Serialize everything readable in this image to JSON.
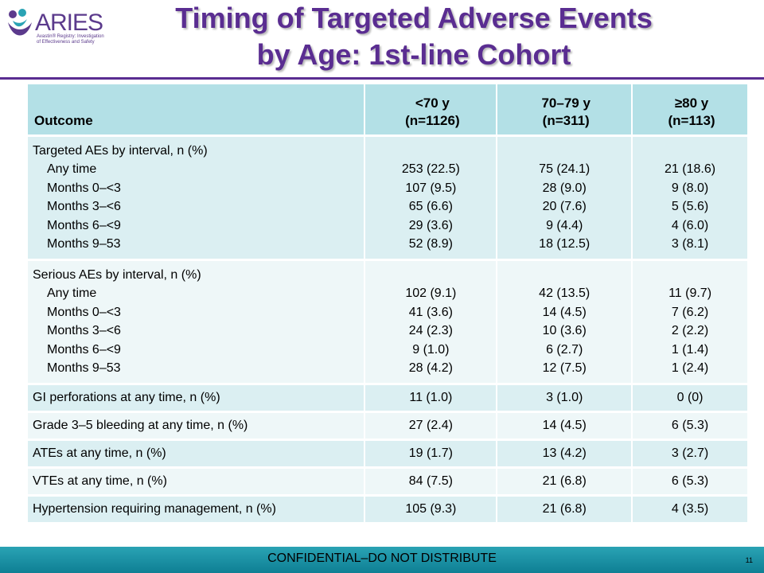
{
  "header": {
    "logo_text": "ARIES",
    "logo_subtitle": "Avastin® Registry: Investigation of Effectiveness and Safety",
    "title_line1": "Timing of Targeted Adverse Events",
    "title_line2": "by Age: 1st-line Cohort"
  },
  "table": {
    "columns": [
      {
        "line1": "Outcome",
        "line2": ""
      },
      {
        "line1": "<70 y",
        "line2": "(n=1126)"
      },
      {
        "line1": "70–79 y",
        "line2": "(n=311)"
      },
      {
        "line1": "≥80 y",
        "line2": "(n=113)"
      }
    ],
    "groups": [
      {
        "title": "Targeted AEs by interval, n (%)",
        "rows": [
          {
            "label": "Any time",
            "v1": "253 (22.5)",
            "v2": "75 (24.1)",
            "v3": "21 (18.6)"
          },
          {
            "label": "Months 0–<3",
            "v1": "107 (9.5)",
            "v2": "28 (9.0)",
            "v3": "9 (8.0)"
          },
          {
            "label": "Months 3–<6",
            "v1": "65 (6.6)",
            "v2": "20 (7.6)",
            "v3": "5 (5.6)"
          },
          {
            "label": "Months 6–<9",
            "v1": "29 (3.6)",
            "v2": "9 (4.4)",
            "v3": "4 (6.0)"
          },
          {
            "label": "Months 9–53",
            "v1": "52 (8.9)",
            "v2": "18 (12.5)",
            "v3": "3 (8.1)"
          }
        ]
      },
      {
        "title": "Serious AEs by interval, n (%)",
        "rows": [
          {
            "label": "Any time",
            "v1": "102 (9.1)",
            "v2": "42 (13.5)",
            "v3": "11 (9.7)"
          },
          {
            "label": "Months 0–<3",
            "v1": "41 (3.6)",
            "v2": "14 (4.5)",
            "v3": "7 (6.2)"
          },
          {
            "label": "Months 3–<6",
            "v1": "24 (2.3)",
            "v2": "10 (3.6)",
            "v3": "2 (2.2)"
          },
          {
            "label": "Months 6–<9",
            "v1": "9 (1.0)",
            "v2": "6 (2.7)",
            "v3": "1 (1.4)"
          },
          {
            "label": "Months 9–53",
            "v1": "28 (4.2)",
            "v2": "12 (7.5)",
            "v3": "1 (2.4)"
          }
        ]
      }
    ],
    "singles": [
      {
        "label": "GI perforations at any time, n (%)",
        "v1": "11 (1.0)",
        "v2": "3 (1.0)",
        "v3": "0 (0)"
      },
      {
        "label": "Grade 3–5 bleeding at any time, n (%)",
        "v1": "27 (2.4)",
        "v2": "14 (4.5)",
        "v3": "6 (5.3)"
      },
      {
        "label": "ATEs at any time, n (%)",
        "v1": "19 (1.7)",
        "v2": "13 (4.2)",
        "v3": "3 (2.7)"
      },
      {
        "label": "VTEs at any time, n (%)",
        "v1": "84 (7.5)",
        "v2": "21 (6.8)",
        "v3": "6 (5.3)"
      },
      {
        "label": "Hypertension requiring management, n (%)",
        "v1": "105 (9.3)",
        "v2": "21 (6.8)",
        "v3": "4 (3.5)"
      }
    ]
  },
  "footer": {
    "text": "CONFIDENTIAL–DO NOT DISTRIBUTE",
    "page_number": "11"
  },
  "colors": {
    "title": "#5a2d91",
    "header_fill": "#b3e0e6",
    "row_odd": "#dbeff2",
    "row_even": "#eef7f8",
    "footer_bar": "#1a93a8"
  }
}
